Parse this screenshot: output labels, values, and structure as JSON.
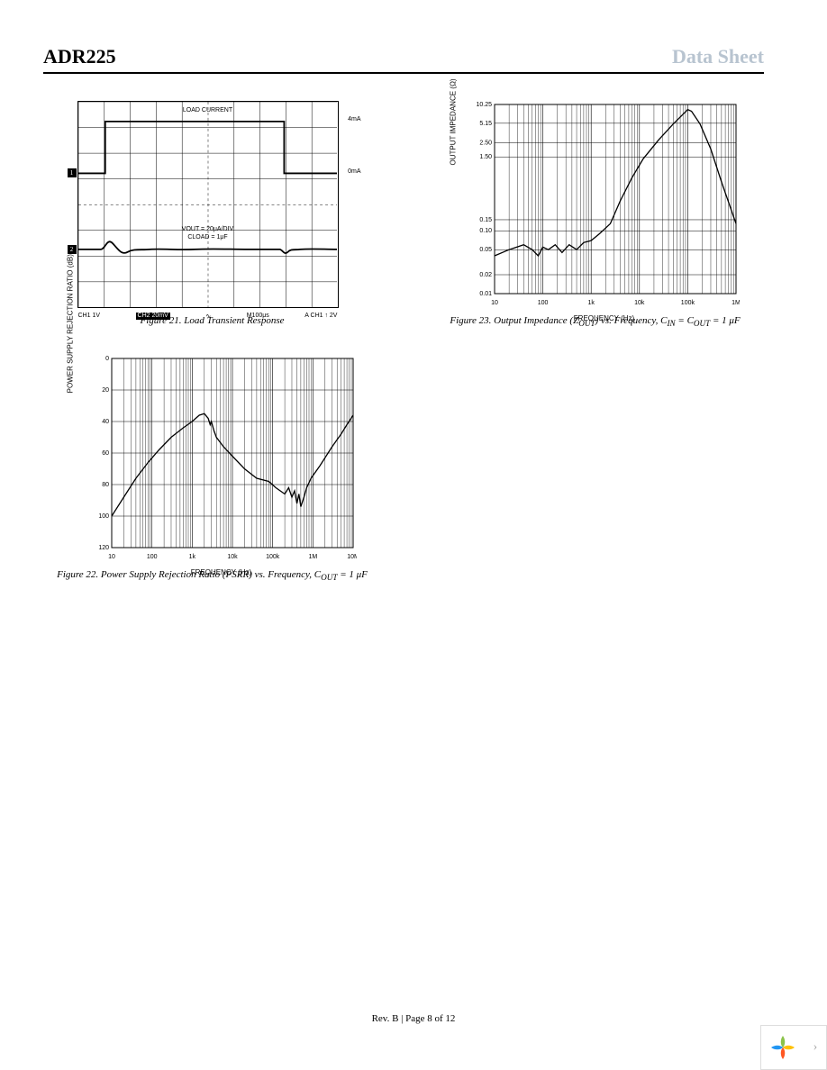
{
  "header": {
    "part": "ADR225",
    "doctype": "Data Sheet"
  },
  "footer": {
    "text": "Rev. B | Page 8 of 12"
  },
  "fig21": {
    "caption": "Figure 21. Load Transient Response",
    "top_label": "LOAD CURRENT",
    "right_label_1": "4mA",
    "right_label_2": "0mA",
    "annot1": "VOUT = 20μA/DIV",
    "annot2": "CLOAD = 1μF",
    "bottom_ch1": "CH1 1V",
    "bottom_ch2": "CH2 20mV",
    "bottom_time": "M100μs",
    "bottom_trig": "A CH1 ↑ 2V",
    "marker1": "1",
    "marker2": "2"
  },
  "fig22": {
    "caption_a": "Figure 22. Power Supply Rejection Ratio (PSRR) vs. Frequency, C",
    "caption_b": "OUT",
    "caption_c": " = 1 μF",
    "ylab": "POWER SUPPLY REJECTION RATIO (dB)",
    "xlab": "FREQUENCY (Hz)",
    "xticks": [
      "10",
      "100",
      "1k",
      "10k",
      "100k",
      "1M",
      "10M"
    ],
    "yticks": [
      "0",
      "20",
      "40",
      "60",
      "80",
      "100",
      "120"
    ],
    "ylim": [
      0,
      120
    ],
    "curve": [
      [
        10,
        100
      ],
      [
        20,
        88
      ],
      [
        40,
        76
      ],
      [
        80,
        66
      ],
      [
        150,
        58
      ],
      [
        300,
        50
      ],
      [
        600,
        44
      ],
      [
        1000,
        40
      ],
      [
        1500,
        36
      ],
      [
        2000,
        35
      ],
      [
        2500,
        38
      ],
      [
        2800,
        42
      ],
      [
        3000,
        40
      ],
      [
        3500,
        46
      ],
      [
        4000,
        50
      ],
      [
        6000,
        56
      ],
      [
        10000,
        62
      ],
      [
        20000,
        70
      ],
      [
        40000,
        76
      ],
      [
        80000,
        78
      ],
      [
        120000,
        82
      ],
      [
        200000,
        86
      ],
      [
        250000,
        82
      ],
      [
        300000,
        88
      ],
      [
        350000,
        84
      ],
      [
        400000,
        92
      ],
      [
        450000,
        86
      ],
      [
        500000,
        94
      ],
      [
        600000,
        88
      ],
      [
        700000,
        82
      ],
      [
        900000,
        76
      ],
      [
        1500000,
        68
      ],
      [
        3000000,
        56
      ],
      [
        5000000,
        48
      ],
      [
        7000000,
        42
      ],
      [
        10000000,
        36
      ]
    ]
  },
  "fig23": {
    "caption_a": "Figure 23. Output Impedance (Z",
    "caption_b": "OUT",
    "caption_c": ") vs. Frequency, C",
    "caption_d": "IN",
    "caption_e": " = C",
    "caption_f": "OUT",
    "caption_g": " = 1 μF",
    "ylab": "OUTPUT IMPEDANCE (Ω)",
    "xlab": "FREQUENCY (Hz)",
    "xticks": [
      "10",
      "100",
      "1k",
      "10k",
      "100k",
      "1M"
    ],
    "yticks": [
      "0.01",
      "0.02",
      "0.05",
      "0.10",
      "0.15",
      "1.50",
      "2.50",
      "5.15",
      "10.25"
    ],
    "yvals": [
      0.01,
      0.02,
      0.05,
      0.1,
      0.15,
      1.5,
      2.5,
      5.15,
      10.25
    ],
    "curve": [
      [
        10,
        0.04
      ],
      [
        20,
        0.05
      ],
      [
        40,
        0.06
      ],
      [
        60,
        0.05
      ],
      [
        80,
        0.04
      ],
      [
        100,
        0.055
      ],
      [
        130,
        0.05
      ],
      [
        180,
        0.06
      ],
      [
        250,
        0.045
      ],
      [
        350,
        0.06
      ],
      [
        500,
        0.05
      ],
      [
        700,
        0.065
      ],
      [
        1000,
        0.07
      ],
      [
        1500,
        0.09
      ],
      [
        2500,
        0.13
      ],
      [
        4000,
        0.3
      ],
      [
        7000,
        0.7
      ],
      [
        12000,
        1.4
      ],
      [
        25000,
        2.8
      ],
      [
        50000,
        5.0
      ],
      [
        100000,
        8.5
      ],
      [
        120000,
        8.0
      ],
      [
        180000,
        5.0
      ],
      [
        300000,
        2.0
      ],
      [
        500000,
        0.6
      ],
      [
        1000000,
        0.13
      ]
    ]
  }
}
